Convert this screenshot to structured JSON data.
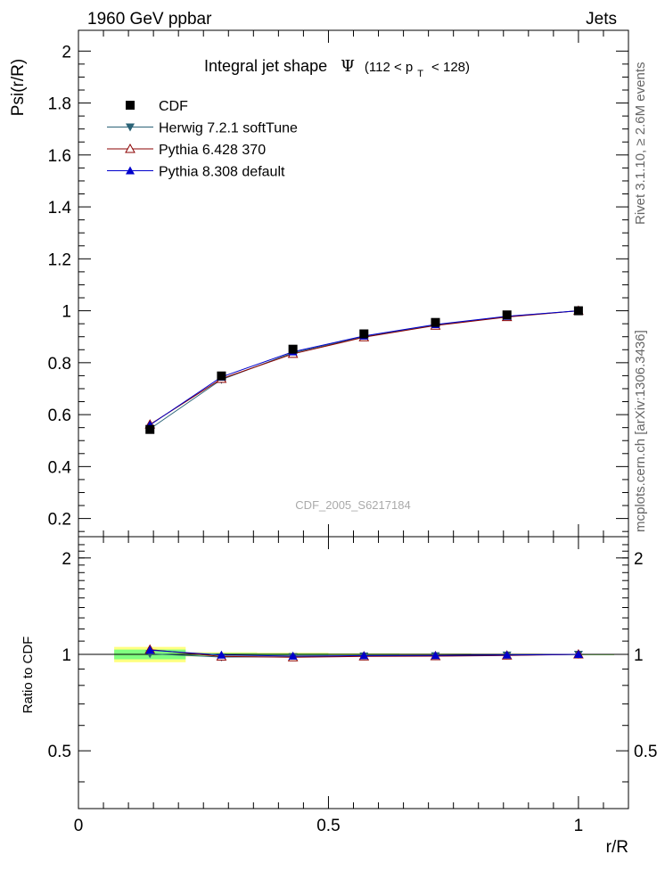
{
  "header": {
    "left": "1960 GeV ppbar",
    "right": "Jets"
  },
  "side_labels": {
    "rivet": "Rivet 3.1.10, ≥ 2.6M events",
    "mcplots": "mcplots.cern.ch [arXiv:1306.3436]"
  },
  "plot_title": {
    "main": "Integral jet shape",
    "psi": "Ψ",
    "range_open": "(112 < p",
    "range_sub": "T",
    "range_close": "< 128)"
  },
  "watermark": "CDF_2005_S6217184",
  "colors": {
    "CDF": "#000000",
    "Herwig": "#2b6377",
    "Pythia6": "#8b0000",
    "Pythia8": "#0000cc",
    "band_yellow": "#ffff80",
    "band_green": "#80ff80"
  },
  "chart_data": [
    {
      "type": "line",
      "panel": "main",
      "xlabel": "r/R",
      "ylabel": "Psi(r/R)",
      "xlim": [
        0,
        1.1
      ],
      "ylim": [
        0.13,
        2.08
      ],
      "x_ticks": [
        "0",
        "0.5",
        "1"
      ],
      "y_ticks": [
        "0.2",
        "0.4",
        "0.6",
        "0.8",
        "1",
        "1.2",
        "1.4",
        "1.6",
        "1.8",
        "2"
      ],
      "x": [
        0.143,
        0.286,
        0.429,
        0.571,
        0.714,
        0.857,
        1.0
      ],
      "legend_position": "top-left",
      "series": [
        {
          "name": "CDF",
          "marker": "square",
          "values": [
            0.543,
            0.749,
            0.852,
            0.911,
            0.955,
            0.984,
            1.0
          ],
          "errors": [
            0.01,
            0.01,
            0.01,
            0.006,
            0.005,
            0.003,
            0.0
          ]
        },
        {
          "name": "Herwig 7.2.1 softTune",
          "marker": "triangle-down",
          "values": [
            0.545,
            0.735,
            0.838,
            0.9,
            0.945,
            0.978,
            1.0
          ]
        },
        {
          "name": "Pythia 6.428 370",
          "marker": "triangle-open",
          "values": [
            0.562,
            0.738,
            0.834,
            0.898,
            0.943,
            0.976,
            1.0
          ]
        },
        {
          "name": "Pythia 8.308 default",
          "marker": "triangle-up",
          "values": [
            0.56,
            0.745,
            0.842,
            0.903,
            0.947,
            0.979,
            1.0
          ]
        }
      ]
    },
    {
      "type": "line",
      "panel": "ratio",
      "xlabel": "r/R",
      "ylabel": "Ratio to CDF",
      "xlim": [
        0,
        1.1
      ],
      "ylim": [
        0.33,
        2.33
      ],
      "y_ticks": [
        "0.5",
        "1",
        "2"
      ],
      "x": [
        0.143,
        0.286,
        0.429,
        0.571,
        0.714,
        0.857,
        1.0
      ],
      "bands": {
        "bin_edges": [
          0.0715,
          0.2145,
          0.3575,
          0.5,
          0.6425,
          0.7855,
          0.9285,
          1.0715
        ],
        "yellow_halfwidth": [
          0.055,
          0.015,
          0.012,
          0.008,
          0.006,
          0.004,
          0.001
        ],
        "green_halfwidth": [
          0.035,
          0.009,
          0.007,
          0.005,
          0.004,
          0.003,
          0.001
        ]
      },
      "series": [
        {
          "name": "Herwig 7.2.1 softTune",
          "values": [
            1.004,
            0.981,
            0.983,
            0.988,
            0.99,
            0.994,
            1.0
          ]
        },
        {
          "name": "Pythia 6.428 370",
          "values": [
            1.035,
            0.985,
            0.979,
            0.986,
            0.987,
            0.992,
            1.0
          ]
        },
        {
          "name": "Pythia 8.308 default",
          "values": [
            1.031,
            0.995,
            0.988,
            0.991,
            0.992,
            0.995,
            1.0
          ]
        }
      ]
    }
  ]
}
